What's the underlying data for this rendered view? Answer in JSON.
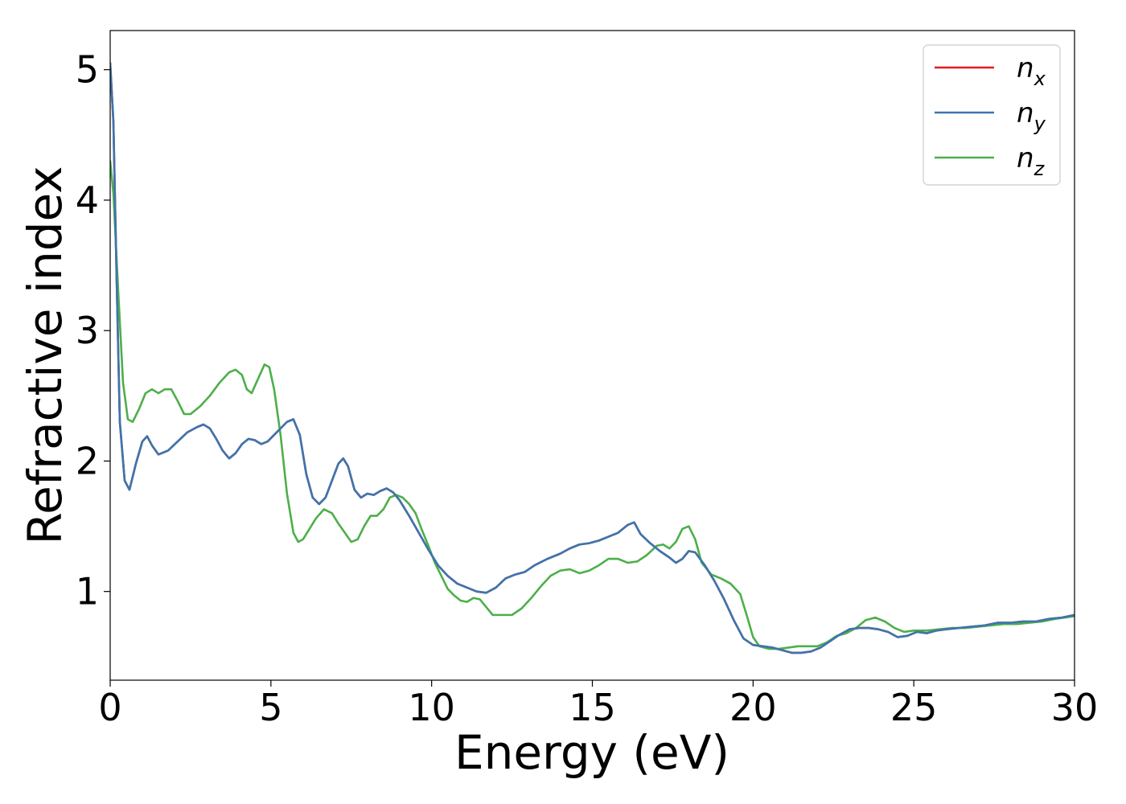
{
  "chart_data": {
    "type": "line",
    "xlabel": "Energy (eV)",
    "ylabel": "Refractive index",
    "xlim": [
      0,
      30
    ],
    "ylim": [
      0.32,
      5.3
    ],
    "xticks": [
      "0",
      "5",
      "10",
      "15",
      "20",
      "25",
      "30"
    ],
    "xtick_values": [
      0,
      5,
      10,
      15,
      20,
      25,
      30
    ],
    "yticks": [
      "1",
      "2",
      "3",
      "4",
      "5"
    ],
    "ytick_values": [
      1,
      2,
      3,
      4,
      5
    ],
    "grid": false,
    "legend_position": "top-right",
    "series": [
      {
        "name": "n",
        "sub": "x",
        "color": "#e41a1c",
        "x": [
          0,
          0.1,
          0.2,
          0.3,
          0.45,
          0.6,
          0.8,
          1.0,
          1.15,
          1.3,
          1.5,
          1.8,
          2.1,
          2.4,
          2.7,
          2.9,
          3.1,
          3.3,
          3.5,
          3.7,
          3.9,
          4.1,
          4.3,
          4.5,
          4.7,
          4.9,
          5.1,
          5.3,
          5.5,
          5.7,
          5.9,
          6.1,
          6.3,
          6.5,
          6.7,
          6.9,
          7.1,
          7.25,
          7.4,
          7.6,
          7.8,
          8.0,
          8.2,
          8.4,
          8.6,
          8.8,
          9.0,
          9.3,
          9.6,
          9.9,
          10.2,
          10.5,
          10.8,
          11.1,
          11.4,
          11.7,
          12.0,
          12.3,
          12.6,
          12.9,
          13.2,
          13.6,
          14.0,
          14.3,
          14.6,
          14.9,
          15.2,
          15.5,
          15.8,
          16.1,
          16.3,
          16.5,
          16.8,
          17.1,
          17.4,
          17.6,
          17.8,
          18.0,
          18.2,
          18.5,
          18.8,
          19.1,
          19.4,
          19.7,
          20.0,
          20.3,
          20.6,
          20.9,
          21.2,
          21.5,
          21.8,
          22.1,
          22.4,
          22.7,
          23.0,
          23.3,
          23.6,
          23.9,
          24.2,
          24.5,
          24.8,
          25.1,
          25.4,
          25.7,
          26.0,
          26.4,
          26.8,
          27.2,
          27.6,
          28.0,
          28.4,
          28.8,
          29.2,
          29.6,
          30.0
        ],
        "y": [
          5.05,
          4.6,
          3.4,
          2.3,
          1.85,
          1.78,
          1.98,
          2.15,
          2.19,
          2.12,
          2.05,
          2.08,
          2.15,
          2.22,
          2.26,
          2.28,
          2.25,
          2.17,
          2.08,
          2.02,
          2.06,
          2.13,
          2.17,
          2.16,
          2.13,
          2.15,
          2.2,
          2.25,
          2.3,
          2.32,
          2.2,
          1.9,
          1.72,
          1.67,
          1.72,
          1.85,
          1.98,
          2.02,
          1.96,
          1.78,
          1.72,
          1.75,
          1.74,
          1.77,
          1.79,
          1.76,
          1.7,
          1.58,
          1.45,
          1.32,
          1.2,
          1.12,
          1.06,
          1.03,
          1.0,
          0.99,
          1.03,
          1.1,
          1.13,
          1.15,
          1.2,
          1.25,
          1.29,
          1.33,
          1.36,
          1.37,
          1.39,
          1.42,
          1.45,
          1.51,
          1.53,
          1.44,
          1.37,
          1.31,
          1.26,
          1.22,
          1.25,
          1.31,
          1.3,
          1.2,
          1.08,
          0.94,
          0.78,
          0.64,
          0.59,
          0.58,
          0.57,
          0.55,
          0.53,
          0.53,
          0.54,
          0.57,
          0.62,
          0.67,
          0.71,
          0.72,
          0.72,
          0.71,
          0.69,
          0.65,
          0.66,
          0.69,
          0.68,
          0.7,
          0.71,
          0.72,
          0.73,
          0.74,
          0.76,
          0.76,
          0.77,
          0.77,
          0.79,
          0.8,
          0.82
        ]
      },
      {
        "name": "n",
        "sub": "y",
        "color": "#3b75af",
        "x": [
          0,
          0.1,
          0.2,
          0.3,
          0.45,
          0.6,
          0.8,
          1.0,
          1.15,
          1.3,
          1.5,
          1.8,
          2.1,
          2.4,
          2.7,
          2.9,
          3.1,
          3.3,
          3.5,
          3.7,
          3.9,
          4.1,
          4.3,
          4.5,
          4.7,
          4.9,
          5.1,
          5.3,
          5.5,
          5.7,
          5.9,
          6.1,
          6.3,
          6.5,
          6.7,
          6.9,
          7.1,
          7.25,
          7.4,
          7.6,
          7.8,
          8.0,
          8.2,
          8.4,
          8.6,
          8.8,
          9.0,
          9.3,
          9.6,
          9.9,
          10.2,
          10.5,
          10.8,
          11.1,
          11.4,
          11.7,
          12.0,
          12.3,
          12.6,
          12.9,
          13.2,
          13.6,
          14.0,
          14.3,
          14.6,
          14.9,
          15.2,
          15.5,
          15.8,
          16.1,
          16.3,
          16.5,
          16.8,
          17.1,
          17.4,
          17.6,
          17.8,
          18.0,
          18.2,
          18.5,
          18.8,
          19.1,
          19.4,
          19.7,
          20.0,
          20.3,
          20.6,
          20.9,
          21.2,
          21.5,
          21.8,
          22.1,
          22.4,
          22.7,
          23.0,
          23.3,
          23.6,
          23.9,
          24.2,
          24.5,
          24.8,
          25.1,
          25.4,
          25.7,
          26.0,
          26.4,
          26.8,
          27.2,
          27.6,
          28.0,
          28.4,
          28.8,
          29.2,
          29.6,
          30.0
        ],
        "y": [
          5.05,
          4.6,
          3.4,
          2.3,
          1.85,
          1.78,
          1.98,
          2.15,
          2.19,
          2.12,
          2.05,
          2.08,
          2.15,
          2.22,
          2.26,
          2.28,
          2.25,
          2.17,
          2.08,
          2.02,
          2.06,
          2.13,
          2.17,
          2.16,
          2.13,
          2.15,
          2.2,
          2.25,
          2.3,
          2.32,
          2.2,
          1.9,
          1.72,
          1.67,
          1.72,
          1.85,
          1.98,
          2.02,
          1.96,
          1.78,
          1.72,
          1.75,
          1.74,
          1.77,
          1.79,
          1.76,
          1.7,
          1.58,
          1.45,
          1.32,
          1.2,
          1.12,
          1.06,
          1.03,
          1.0,
          0.99,
          1.03,
          1.1,
          1.13,
          1.15,
          1.2,
          1.25,
          1.29,
          1.33,
          1.36,
          1.37,
          1.39,
          1.42,
          1.45,
          1.51,
          1.53,
          1.44,
          1.37,
          1.31,
          1.26,
          1.22,
          1.25,
          1.31,
          1.3,
          1.2,
          1.08,
          0.94,
          0.78,
          0.64,
          0.59,
          0.58,
          0.57,
          0.55,
          0.53,
          0.53,
          0.54,
          0.57,
          0.62,
          0.67,
          0.71,
          0.72,
          0.72,
          0.71,
          0.69,
          0.65,
          0.66,
          0.69,
          0.68,
          0.7,
          0.71,
          0.72,
          0.73,
          0.74,
          0.76,
          0.76,
          0.77,
          0.77,
          0.79,
          0.8,
          0.82
        ]
      },
      {
        "name": "n",
        "sub": "z",
        "color": "#4daf4a",
        "x": [
          0,
          0.1,
          0.25,
          0.4,
          0.55,
          0.7,
          0.9,
          1.1,
          1.3,
          1.5,
          1.7,
          1.9,
          2.1,
          2.3,
          2.5,
          2.8,
          3.1,
          3.4,
          3.7,
          3.9,
          4.1,
          4.25,
          4.4,
          4.6,
          4.8,
          4.95,
          5.1,
          5.3,
          5.5,
          5.7,
          5.85,
          6.0,
          6.2,
          6.4,
          6.65,
          6.9,
          7.1,
          7.3,
          7.5,
          7.7,
          7.9,
          8.1,
          8.3,
          8.5,
          8.7,
          8.9,
          9.1,
          9.3,
          9.5,
          9.7,
          9.9,
          10.1,
          10.3,
          10.5,
          10.7,
          10.9,
          11.1,
          11.3,
          11.5,
          11.7,
          11.9,
          12.2,
          12.5,
          12.8,
          13.1,
          13.4,
          13.7,
          14.0,
          14.3,
          14.6,
          14.9,
          15.2,
          15.5,
          15.8,
          16.1,
          16.4,
          16.7,
          17.0,
          17.2,
          17.4,
          17.6,
          17.8,
          18.0,
          18.2,
          18.4,
          18.7,
          19.0,
          19.3,
          19.6,
          19.8,
          20.0,
          20.2,
          20.5,
          20.8,
          21.1,
          21.4,
          21.7,
          22.0,
          22.3,
          22.6,
          22.9,
          23.2,
          23.5,
          23.8,
          24.1,
          24.4,
          24.7,
          25.0,
          25.4,
          25.8,
          26.2,
          26.6,
          27.0,
          27.4,
          27.8,
          28.2,
          28.6,
          29.0,
          29.4,
          29.7,
          30.0
        ],
        "y": [
          4.3,
          4.05,
          3.3,
          2.6,
          2.32,
          2.3,
          2.4,
          2.52,
          2.55,
          2.52,
          2.55,
          2.55,
          2.46,
          2.36,
          2.36,
          2.42,
          2.5,
          2.6,
          2.68,
          2.7,
          2.66,
          2.55,
          2.52,
          2.63,
          2.74,
          2.72,
          2.55,
          2.2,
          1.75,
          1.45,
          1.38,
          1.4,
          1.48,
          1.56,
          1.63,
          1.6,
          1.52,
          1.45,
          1.38,
          1.4,
          1.5,
          1.58,
          1.58,
          1.63,
          1.72,
          1.74,
          1.72,
          1.67,
          1.6,
          1.47,
          1.35,
          1.22,
          1.12,
          1.02,
          0.97,
          0.93,
          0.92,
          0.95,
          0.94,
          0.88,
          0.82,
          0.82,
          0.82,
          0.87,
          0.95,
          1.04,
          1.12,
          1.16,
          1.17,
          1.14,
          1.16,
          1.2,
          1.25,
          1.25,
          1.22,
          1.23,
          1.28,
          1.35,
          1.36,
          1.33,
          1.38,
          1.48,
          1.5,
          1.4,
          1.22,
          1.13,
          1.1,
          1.06,
          0.98,
          0.82,
          0.65,
          0.58,
          0.56,
          0.56,
          0.57,
          0.58,
          0.58,
          0.58,
          0.61,
          0.66,
          0.68,
          0.72,
          0.78,
          0.8,
          0.77,
          0.72,
          0.69,
          0.7,
          0.7,
          0.71,
          0.72,
          0.72,
          0.73,
          0.74,
          0.75,
          0.75,
          0.76,
          0.77,
          0.79,
          0.8,
          0.81
        ]
      }
    ]
  }
}
